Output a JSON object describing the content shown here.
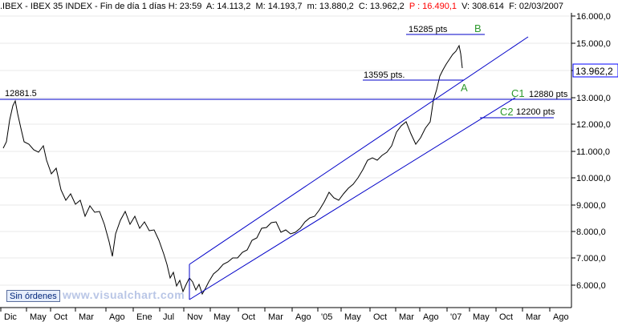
{
  "header": {
    "symbol": ".IBEX",
    "name": "IBEX 35 INDEX",
    "period": "Fin de día 1 días",
    "hour": "H: 23:59",
    "open": "A: 14.113,2",
    "high": "M: 14.193,7",
    "low": "m: 13.880,2",
    "close": "C: 13.962,2",
    "prev": "P : 16.490,1",
    "volume": "V: 308.614",
    "date": "F: 02/03/2007"
  },
  "colors": {
    "price": "#000000",
    "channel": "#0000c8",
    "green_label": "#2e9a2e",
    "current_box": "#0000ff",
    "prev_red": "#ff0000"
  },
  "chart_data": {
    "type": "line",
    "x_tick_labels": [
      "Dic",
      "May",
      "Oct",
      "Mar",
      "Ago",
      "Ene",
      "Jul",
      "Nov",
      "May",
      "Oct",
      "Mar",
      "Ago",
      "'05",
      "May",
      "Oct",
      "Mar",
      "Ago",
      "'07",
      "May",
      "Oct",
      "Mar",
      "Ago"
    ],
    "y_tick_labels": [
      "6.000,0",
      "7.000,0",
      "8.000,0",
      "9.000,0",
      "10.000,0",
      "11.000,0",
      "12.000,0",
      "13.000,0",
      "14.000,0",
      "15.000,0",
      "16.000,0"
    ],
    "ylim": [
      5400,
      16200
    ],
    "current_value": "13.962,2",
    "annotations": {
      "resistance_label": "12881.5",
      "top_label": "15285 pts",
      "mid_label": "13595 pts.",
      "c1_letter": "C1",
      "c1_value": "12880 pts",
      "c2_letter": "C2",
      "c2_value": "12200 pts",
      "a_letter": "A",
      "b_letter": "B"
    }
  },
  "footer": {
    "status_button": "Sin órdenes",
    "watermark": "www.visualchart.com"
  }
}
